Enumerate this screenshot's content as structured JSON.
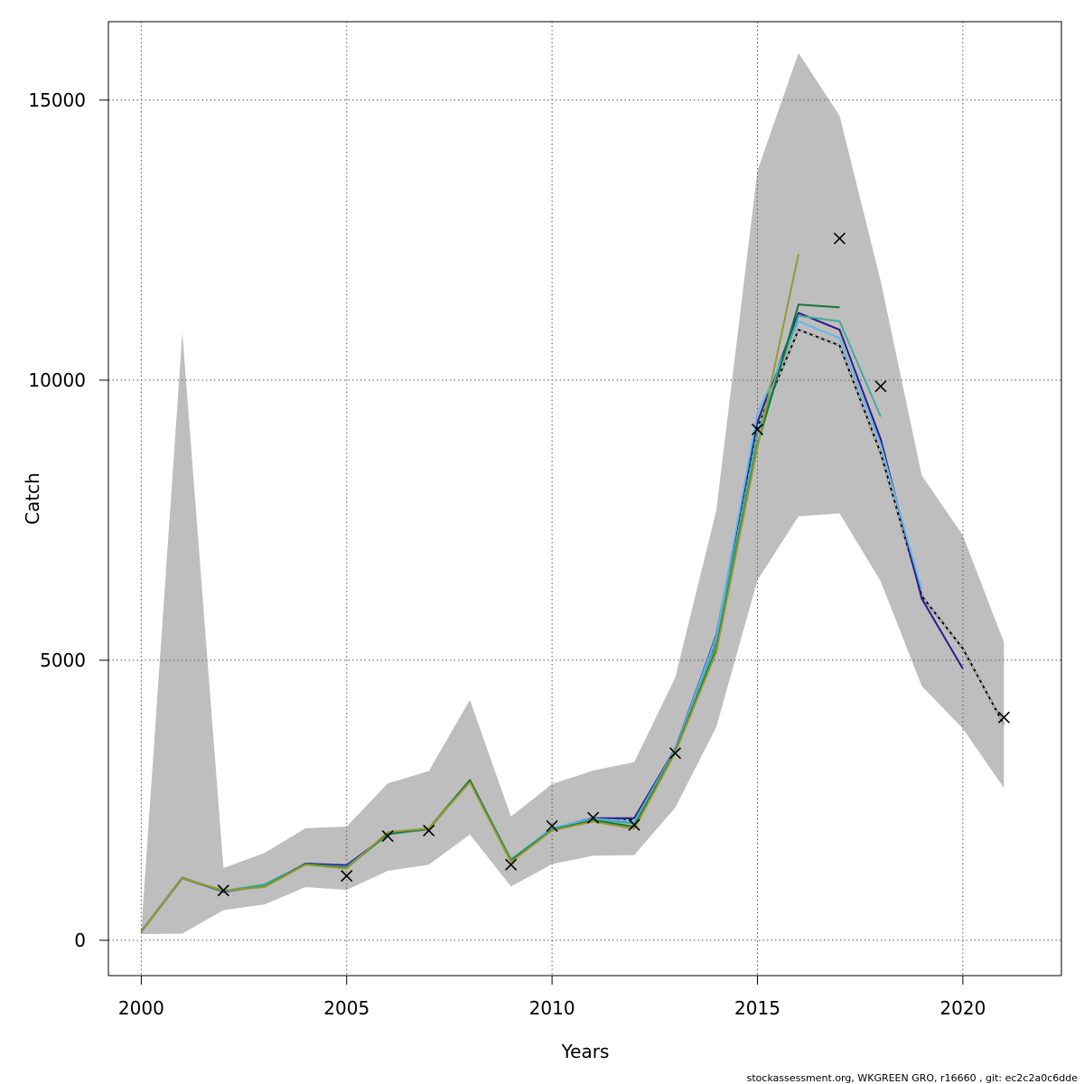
{
  "chart_data": {
    "type": "line",
    "title": "",
    "xlabel": "Years",
    "ylabel": "Catch",
    "xlim": [
      1999.2,
      2022.4
    ],
    "ylim": [
      -630,
      16400
    ],
    "grid": true,
    "grid_style": "dotted",
    "x_ticks": [
      2000,
      2005,
      2010,
      2015,
      2020
    ],
    "y_ticks": [
      0,
      5000,
      10000,
      15000
    ],
    "colors": {
      "band": "#bebebe",
      "main": "#000000",
      "observed": "#000000"
    },
    "confidence_band": {
      "x": [
        2000,
        2001,
        2002,
        2003,
        2004,
        2005,
        2006,
        2007,
        2008,
        2009,
        2010,
        2011,
        2012,
        2013,
        2014,
        2015,
        2016,
        2017,
        2018,
        2019,
        2020,
        2021
      ],
      "lower": [
        110,
        120,
        540,
        640,
        950,
        900,
        1240,
        1350,
        1890,
        960,
        1360,
        1510,
        1520,
        2370,
        3810,
        6430,
        7570,
        7620,
        6410,
        4540,
        3780,
        2720
      ],
      "upper": [
        170,
        10850,
        1290,
        1560,
        2000,
        2030,
        2800,
        3020,
        4290,
        2210,
        2790,
        3030,
        3180,
        4690,
        7680,
        13740,
        15840,
        14720,
        11770,
        8300,
        7230,
        5320
      ]
    },
    "series": [
      {
        "color": "#000000",
        "dashed": false,
        "x": [
          2000,
          2001,
          2002,
          2003,
          2004,
          2005,
          2006,
          2007,
          2008,
          2009,
          2010,
          2011,
          2012,
          2013,
          2014,
          2015,
          2016,
          2017,
          2018,
          2019,
          2020,
          2021
        ],
        "values": [
          150,
          1110,
          870,
          970,
          1360,
          1300,
          1900,
          1980,
          2850,
          1440,
          1990,
          2140,
          2150,
          3400,
          5400,
          9150,
          10900,
          10620,
          8700,
          6150,
          5210,
          3850
        ]
      },
      {
        "color": "#d9d9d9",
        "dashed": true,
        "x": [
          2000,
          2001,
          2002,
          2003,
          2004,
          2005,
          2006,
          2007,
          2008,
          2009,
          2010,
          2011,
          2012,
          2013,
          2014,
          2015,
          2016,
          2017,
          2018,
          2019,
          2020,
          2021
        ],
        "values": [
          150,
          1110,
          870,
          970,
          1360,
          1300,
          1900,
          1980,
          2850,
          1440,
          1990,
          2140,
          2150,
          3400,
          5400,
          9150,
          10900,
          10620,
          8700,
          6150,
          5210,
          3850
        ]
      },
      {
        "color": "#2d1a8c",
        "dashed": false,
        "x": [
          2000,
          2001,
          2002,
          2003,
          2004,
          2005,
          2006,
          2007,
          2008,
          2009,
          2010,
          2011,
          2012,
          2013,
          2014,
          2015,
          2016,
          2017,
          2018,
          2019,
          2020
        ],
        "values": [
          160,
          1120,
          860,
          980,
          1370,
          1340,
          1890,
          1990,
          2860,
          1430,
          2000,
          2180,
          2180,
          3420,
          5450,
          9250,
          11200,
          10900,
          8950,
          6100,
          4850
        ]
      },
      {
        "color": "#63b8ea",
        "dashed": false,
        "x": [
          2000,
          2001,
          2002,
          2003,
          2004,
          2005,
          2006,
          2007,
          2008,
          2009,
          2010,
          2011,
          2012,
          2013,
          2014,
          2015,
          2016,
          2017,
          2018,
          2019
        ],
        "values": [
          155,
          1115,
          865,
          980,
          1360,
          1310,
          1895,
          1990,
          2850,
          1440,
          2010,
          2170,
          2120,
          3410,
          5420,
          9400,
          11050,
          10750,
          8850,
          6250
        ]
      },
      {
        "color": "#44aa99",
        "dashed": false,
        "x": [
          2000,
          2001,
          2002,
          2003,
          2004,
          2005,
          2006,
          2007,
          2008,
          2009,
          2010,
          2011,
          2012,
          2013,
          2014,
          2015,
          2016,
          2017,
          2018
        ],
        "values": [
          155,
          1110,
          880,
          1000,
          1360,
          1300,
          1890,
          1990,
          2840,
          1450,
          1980,
          2150,
          2090,
          3390,
          5300,
          9050,
          11150,
          11050,
          9350
        ]
      },
      {
        "color": "#117733",
        "dashed": false,
        "x": [
          2000,
          2001,
          2002,
          2003,
          2004,
          2005,
          2006,
          2007,
          2008,
          2009,
          2010,
          2011,
          2012,
          2013,
          2014,
          2015,
          2016,
          2017
        ],
        "values": [
          150,
          1105,
          880,
          960,
          1360,
          1290,
          1900,
          2000,
          2860,
          1420,
          1970,
          2140,
          2030,
          3370,
          5200,
          8850,
          11350,
          11300
        ]
      },
      {
        "color": "#999933",
        "dashed": false,
        "x": [
          2000,
          2001,
          2002,
          2003,
          2004,
          2005,
          2006,
          2007,
          2008,
          2009,
          2010,
          2011,
          2012,
          2013,
          2014,
          2015,
          2016
        ],
        "values": [
          150,
          1110,
          890,
          950,
          1350,
          1280,
          1930,
          2000,
          2820,
          1400,
          1960,
          2120,
          1990,
          3350,
          5150,
          8800,
          12250
        ]
      }
    ],
    "observed": {
      "marker": "x",
      "x": [
        2002,
        2005,
        2006,
        2007,
        2009,
        2010,
        2011,
        2012,
        2013,
        2015,
        2017,
        2018,
        2021
      ],
      "values": [
        890,
        1150,
        1860,
        1960,
        1350,
        2040,
        2190,
        2060,
        3340,
        9120,
        12530,
        9890,
        3980
      ]
    }
  },
  "footer": "stockassessment.org, WKGREEN GRO, r16660 , git: ec2c2a0c6dde"
}
